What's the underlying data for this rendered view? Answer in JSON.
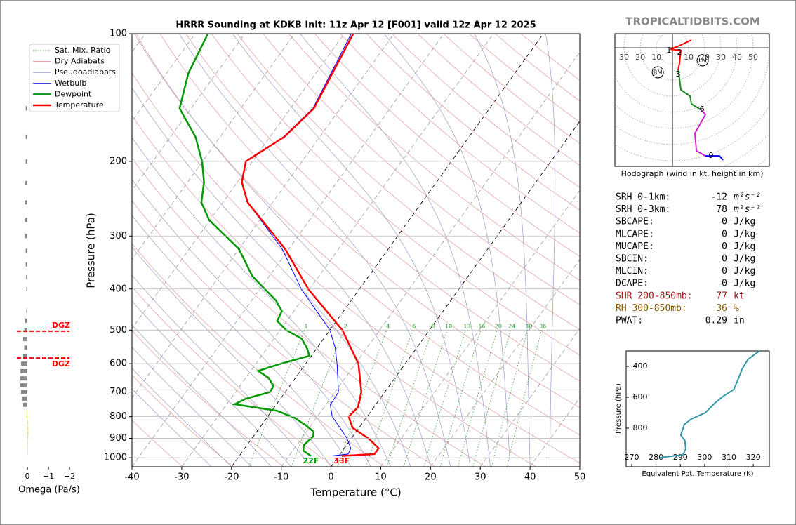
{
  "header": {
    "brand": "TROPICALTIDBITS.COM"
  },
  "chart_data": [
    {
      "type": "skewt",
      "title": "HRRR Sounding at KDKB Init: 11z Apr 12 [F001] valid 12z Apr 12 2025",
      "xlabel": "Temperature (°C)",
      "ylabel": "Pressure (hPa)",
      "xlim": [
        -40,
        50
      ],
      "ylim": [
        1050,
        100
      ],
      "log_y": true,
      "grid": true,
      "xticks": [
        -40,
        -30,
        -20,
        -10,
        0,
        10,
        20,
        30,
        40,
        50
      ],
      "yticks": [
        100,
        200,
        300,
        400,
        500,
        600,
        700,
        800,
        900,
        1000
      ],
      "background_lines": [
        {
          "name": "Sat. Mix. Ratio",
          "color": "#2ca02c"
        },
        {
          "name": "Dry Adiabats",
          "color": "#e39a9a"
        },
        {
          "name": "Pseudoadiabats",
          "color": "#9a9ad0"
        }
      ],
      "mixing_ratios": [
        1,
        2,
        4,
        6,
        8,
        10,
        13,
        16,
        20,
        24,
        30,
        36
      ],
      "series": [
        {
          "name": "Wetbulb",
          "color": "#0000ff",
          "width": 1,
          "pressure": [
            100,
            150,
            175,
            200,
            224,
            250,
            322,
            400,
            500,
            550,
            600,
            700,
            750,
            800,
            850,
            900,
            950,
            980,
            990
          ],
          "temperature": [
            -58.6,
            -55.5,
            -57.3,
            -61.3,
            -59.1,
            -55.0,
            -41.3,
            -31.7,
            -20,
            -16.4,
            -13.7,
            -9.3,
            -9.1,
            -7,
            -3.8,
            -0.9,
            1.3,
            1.6,
            -1.5
          ]
        },
        {
          "name": "Dewpoint",
          "color": "#009900",
          "width": 2.5,
          "pressure": [
            100,
            124,
            150,
            175,
            200,
            224,
            250,
            275,
            322,
            373,
            426,
            451,
            476,
            500,
            524,
            554,
            575,
            600,
            624,
            648,
            678,
            700,
            726,
            748,
            775,
            805,
            840,
            869,
            892,
            934,
            962,
            990
          ],
          "temperature": [
            -87.4,
            -85.6,
            -82.3,
            -75,
            -70.1,
            -66.7,
            -64.3,
            -60.2,
            -50,
            -43.4,
            -35.1,
            -32.4,
            -31.9,
            -28.8,
            -24.4,
            -21.8,
            -20.4,
            -25,
            -28.5,
            -25.4,
            -23.2,
            -23.1,
            -27,
            -28.4,
            -18.9,
            -14.4,
            -10.9,
            -8.5,
            -8,
            -8.6,
            -7.9,
            -5.6
          ]
        },
        {
          "name": "Temperature",
          "color": "#ff0000",
          "width": 2.5,
          "pressure": [
            100,
            150,
            175,
            200,
            224,
            250,
            322,
            400,
            500,
            600,
            700,
            760,
            800,
            850,
            900,
            950,
            980,
            990
          ],
          "temperature": [
            -58.2,
            -55.3,
            -57.1,
            -61.3,
            -59.1,
            -55.0,
            -40.7,
            -30.3,
            -17.5,
            -9.4,
            -4.7,
            -3.2,
            -3.7,
            -1.3,
            3.4,
            6.9,
            6.9,
            0.6
          ]
        }
      ],
      "annotations": [
        {
          "text": "22F",
          "series": 1,
          "color": "#009900"
        },
        {
          "text": "33F",
          "series": 2,
          "color": "#ff0000"
        }
      ]
    },
    {
      "type": "omega",
      "xlabel": "Omega (Pa/s)",
      "xlim": [
        0.5,
        -2
      ],
      "xticks": [
        0,
        {
          "value": -1,
          "label": "−1"
        },
        {
          "value": -2,
          "label": "−2"
        }
      ],
      "dgz": {
        "label": "DGZ",
        "pressures": [
          503,
          582
        ],
        "color": "#ff0000"
      },
      "series": [
        {
          "color": "#888888",
          "pressure": [
            150,
            175,
            200,
            225,
            250,
            275,
            300,
            325,
            350,
            375,
            400,
            450,
            475,
            500,
            525,
            550,
            575,
            600,
            625,
            650,
            675,
            700,
            725,
            750
          ],
          "values": [
            0.08,
            0.08,
            0.08,
            0.1,
            0.12,
            0.1,
            0.1,
            0.08,
            0.08,
            0.06,
            0.05,
            0.05,
            0.1,
            0.15,
            0.2,
            0.15,
            0.2,
            0.3,
            0.33,
            0.33,
            0.33,
            0.3,
            0.25,
            0.2
          ]
        },
        {
          "color": "#f0e040",
          "pressure": [
            775,
            800,
            825,
            850,
            875,
            900,
            925,
            950,
            975
          ],
          "values": [
            0.02,
            0.03,
            -0.04,
            -0.05,
            -0.05,
            -0.04,
            -0.03,
            -0.02,
            -0.02
          ]
        }
      ]
    },
    {
      "type": "hodograph",
      "caption": "Hodograph (wind in kt, height in km)",
      "xlim": [
        -35.7,
        60
      ],
      "ylim": [
        -73.5,
        8.7
      ],
      "xticks": [
        {
          "value": -30,
          "label": "30"
        },
        {
          "value": -20,
          "label": "20"
        },
        {
          "value": -10,
          "label": "10"
        },
        10,
        20,
        30,
        40,
        50
      ],
      "series": [
        {
          "color": "#ff0000",
          "u": [
            11.7,
            4.3,
            -1.3,
            5.2,
            4.3,
            3.5
          ],
          "v": [
            4.8,
            1.3,
            -0.9,
            -1.7,
            -9.6,
            -13.9
          ]
        },
        {
          "color": "#228b22",
          "u": [
            3.5,
            4.3,
            5.2,
            10.9,
            11.7,
            17.4
          ],
          "v": [
            -13.9,
            -19.1,
            -26.1,
            -30,
            -34.8,
            -38.3
          ]
        },
        {
          "color": "#cc22cc",
          "u": [
            17.4,
            20.4,
            13.9,
            14.8,
            20.4
          ],
          "v": [
            -38.3,
            -41.3,
            -53,
            -63.9,
            -67
          ]
        },
        {
          "color": "#0000ff",
          "u": [
            20.4,
            29.1,
            31.3
          ],
          "v": [
            -67,
            -67,
            -69.6
          ]
        }
      ],
      "heights": [
        {
          "height": 1,
          "u": -2.2,
          "v": -1.7
        },
        {
          "height": 2,
          "u": 4.3,
          "v": -3
        },
        {
          "height": 3,
          "u": 3.5,
          "v": -16.5
        },
        {
          "height": 6,
          "u": 18.3,
          "v": -38.3
        },
        {
          "height": 9,
          "u": 23.9,
          "v": -67
        }
      ],
      "motions": [
        {
          "label": "RM",
          "u": -9.1,
          "v": -15.2
        },
        {
          "label": "LM",
          "u": 18.7,
          "v": -7.8
        }
      ]
    },
    {
      "type": "line",
      "xlabel": "Equivalent Pot. Temperature (K)",
      "ylabel": "Pressure (hPa)",
      "xlim": [
        267.7,
        326.6
      ],
      "ylim": [
        1050,
        300
      ],
      "xticks": [
        270,
        280,
        290,
        300,
        310,
        320
      ],
      "yticks": [
        400,
        600,
        800
      ],
      "color": "#3399aa",
      "x": [
        322.5,
        317.8,
        315.5,
        313.2,
        312.0,
        307.5,
        304.0,
        300.3,
        294.5,
        291.6,
        290.2,
        291.9,
        292.2,
        291.0,
        281.5
      ],
      "values": [
        300,
        355,
        414,
        505,
        550,
        595,
        641,
        700,
        741,
        777,
        845,
        882,
        936,
        973,
        991
      ]
    }
  ],
  "stats": [
    {
      "label": "SRH 0-1km:",
      "value": -12,
      "unit": "m²s⁻²"
    },
    {
      "label": "SRH 0-3km:",
      "value": 78,
      "unit": "m²s⁻²"
    },
    {
      "label": "SBCAPE:",
      "value": 0,
      "unit": "J/kg"
    },
    {
      "label": "MLCAPE:",
      "value": 0,
      "unit": "J/kg"
    },
    {
      "label": "MUCAPE:",
      "value": 0,
      "unit": "J/kg"
    },
    {
      "label": "SBCIN:",
      "value": 0,
      "unit": "J/kg"
    },
    {
      "label": "MLCIN:",
      "value": 0,
      "unit": "J/kg"
    },
    {
      "label": "DCAPE:",
      "value": 0,
      "unit": "J/kg"
    },
    {
      "label": "SHR 200-850mb:",
      "value": 77,
      "unit": "kt",
      "color": "#a01818"
    },
    {
      "label": "RH 300-850mb:",
      "value": 36,
      "unit": "%",
      "color": "#8b5a00"
    },
    {
      "label": "PWAT:",
      "value": 0.29,
      "unit": "in"
    }
  ]
}
